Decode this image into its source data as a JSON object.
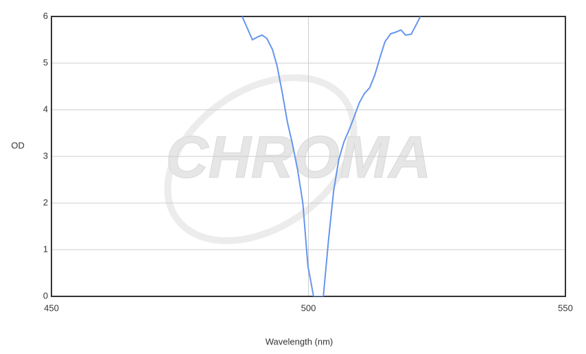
{
  "chart_data": {
    "type": "line",
    "watermark": "CHROMA",
    "x_label": "Wavelength (nm)",
    "y_label": "OD",
    "xlim": [
      450,
      550
    ],
    "xticks": [
      450,
      500,
      550
    ],
    "ylim": [
      0,
      6
    ],
    "yticks": [
      0,
      1,
      2,
      3,
      4,
      5,
      6
    ],
    "grid": true,
    "series": [
      {
        "color": "#6495ed",
        "x": [
          487.1,
          489.1,
          490.1,
          491.0,
          491.9,
          493.0,
          493.9,
          494.9,
          495.9,
          496.9,
          497.9,
          498.9,
          499.9,
          501.0,
          501.9,
          502.9,
          503.9,
          504.9,
          505.9,
          506.9,
          508.0,
          508.9,
          509.9,
          510.9,
          511.9,
          512.9,
          514.0,
          514.9,
          516.0,
          516.9,
          518.0,
          518.9,
          520.0,
          520.9,
          521.8
        ],
        "values": [
          6.0,
          5.5,
          5.56,
          5.6,
          5.53,
          5.29,
          4.94,
          4.37,
          3.74,
          3.26,
          2.71,
          2.01,
          0.65,
          0,
          0,
          0,
          1.2,
          2.26,
          2.93,
          3.31,
          3.59,
          3.85,
          4.15,
          4.35,
          4.47,
          4.74,
          5.15,
          5.46,
          5.63,
          5.66,
          5.71,
          5.6,
          5.62,
          5.81,
          6.0
        ]
      }
    ]
  }
}
